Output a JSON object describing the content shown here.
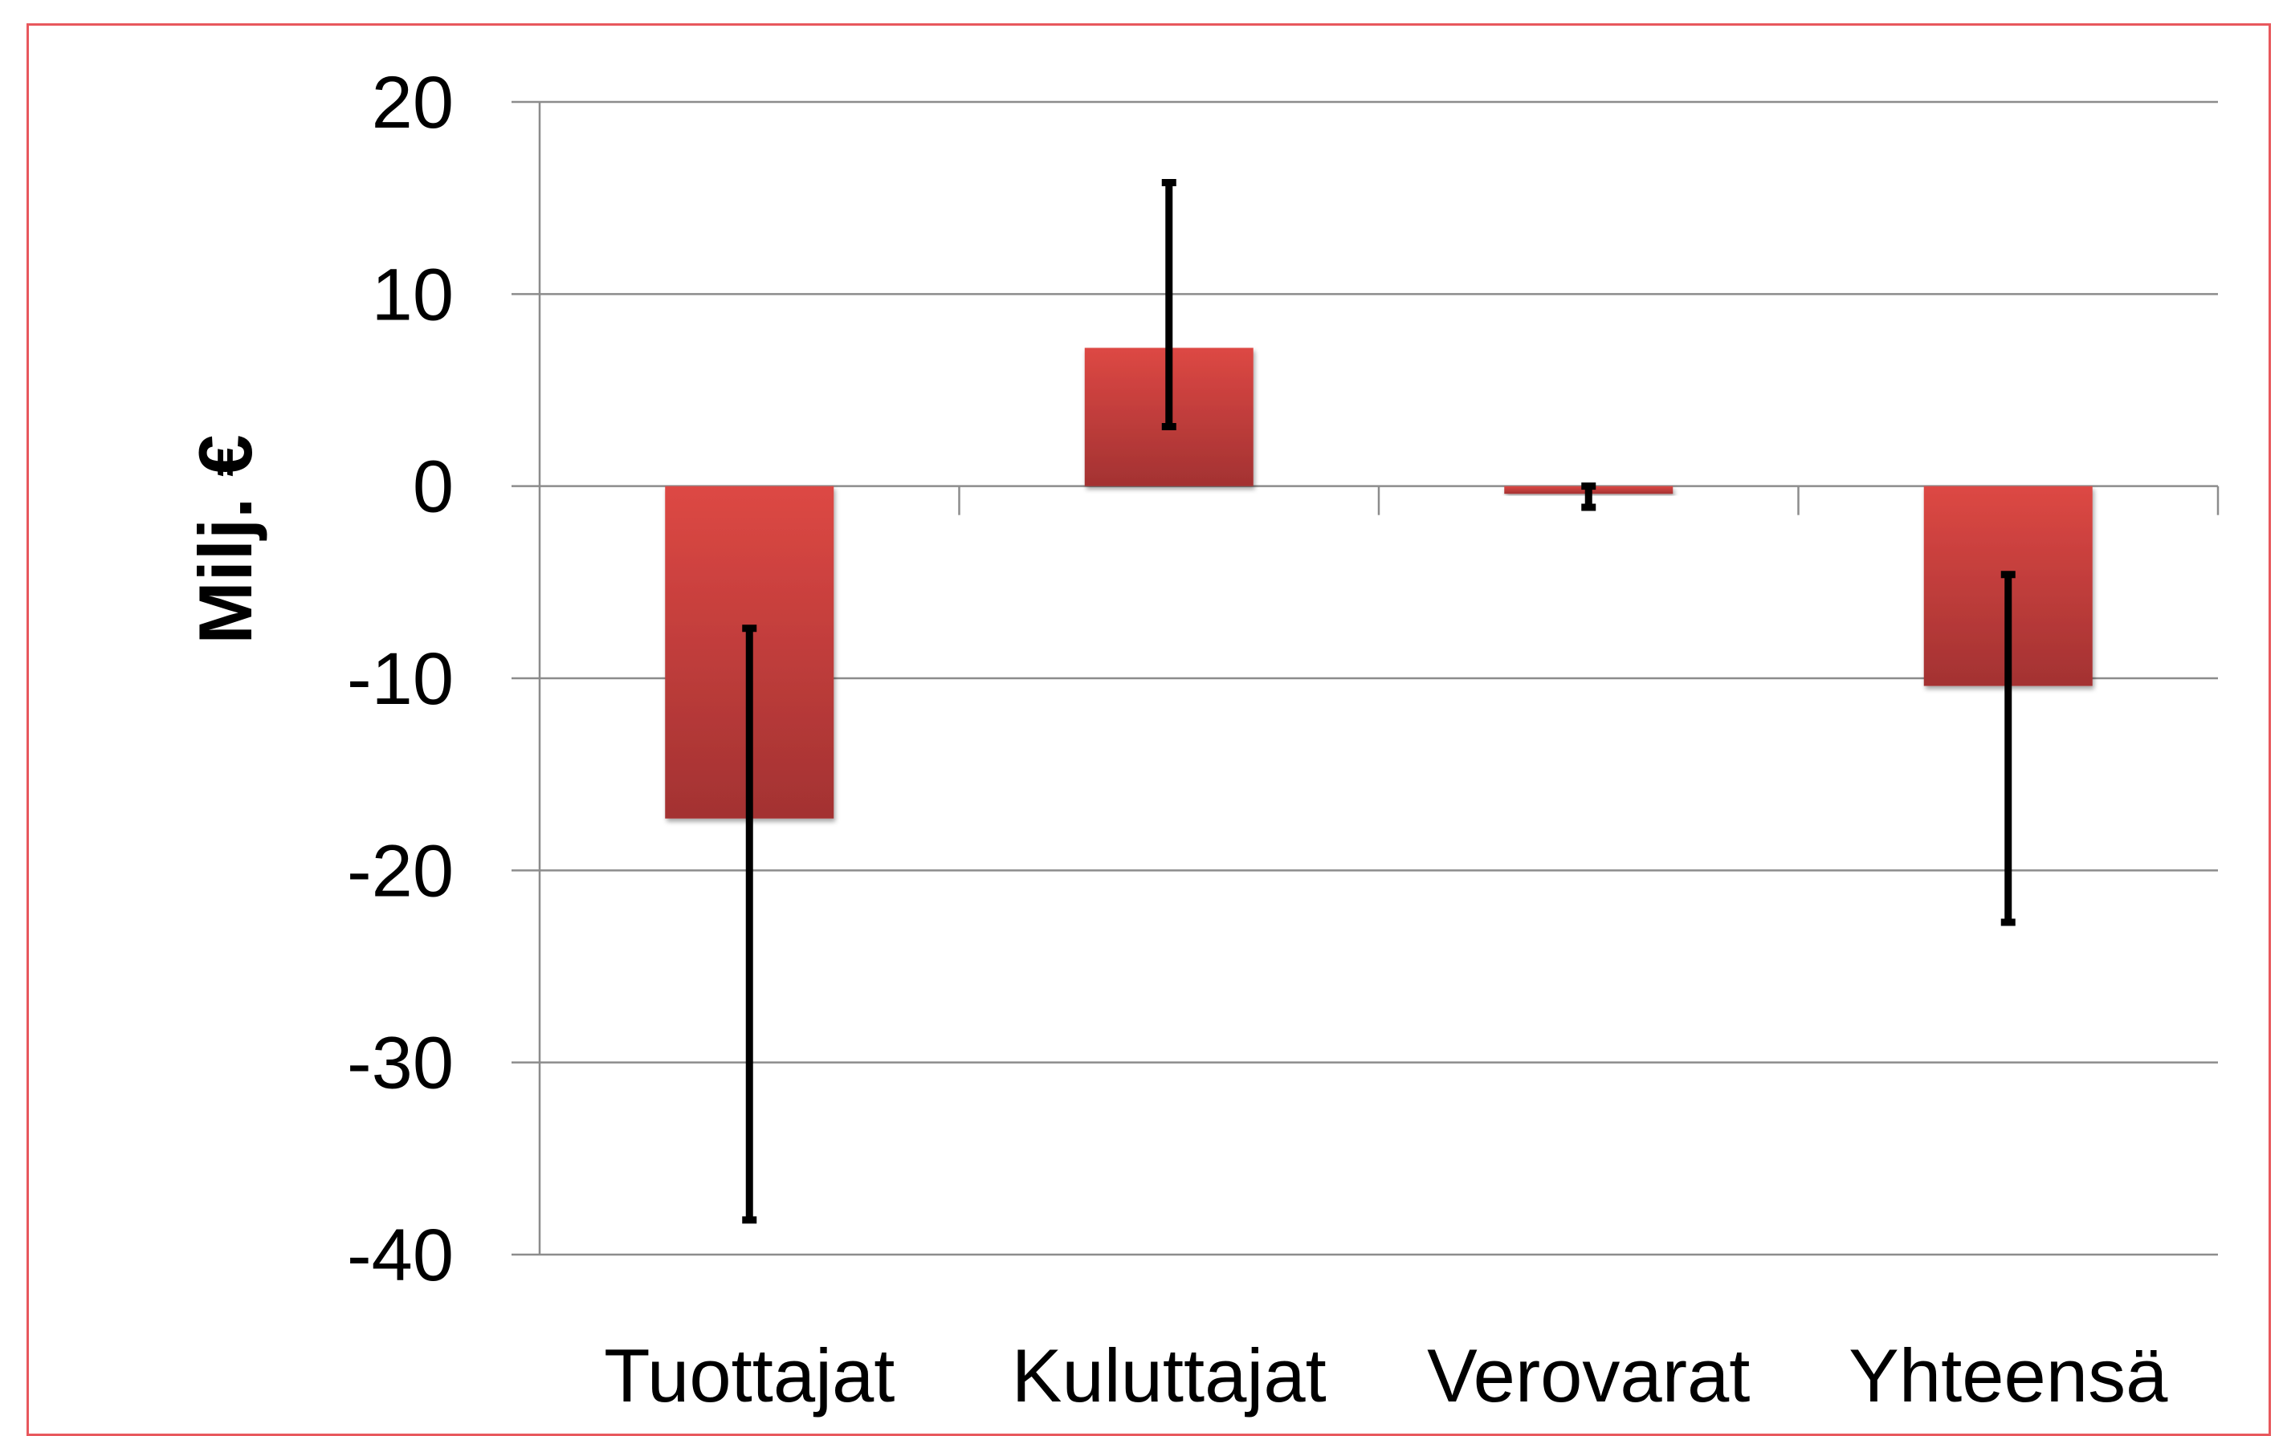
{
  "chart_data": {
    "type": "bar",
    "title": "",
    "xlabel": "",
    "ylabel": "Milj. €",
    "ylim": [
      -40,
      20
    ],
    "yticks": [
      "20",
      "10",
      "0",
      "-10",
      "-20",
      "-30",
      "-40"
    ],
    "grid": true,
    "legend": "none",
    "categories": [
      "Tuottajat",
      "Kuluttajat",
      "Verovarat",
      "Yhteensä"
    ],
    "series": [
      {
        "values": [
          -17.3,
          7.2,
          -0.4,
          -10.4
        ],
        "error_low": [
          -38.2,
          3.1,
          -1.1,
          -22.7
        ],
        "error_high": [
          -7.4,
          15.8,
          0.0,
          -4.6
        ]
      }
    ],
    "colors": {
      "bar_top": "#dd4844",
      "bar_bottom": "#a33232",
      "error_bar": "#000000",
      "grid": "#8c8c8c",
      "frame": "#e8585d"
    }
  }
}
